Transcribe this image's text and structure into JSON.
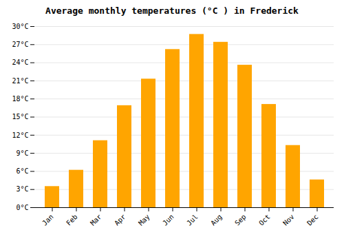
{
  "chart_data": {
    "type": "bar",
    "title": "Average monthly temperatures (°C ) in Frederick",
    "categories": [
      "Jan",
      "Feb",
      "Mar",
      "Apr",
      "May",
      "Jun",
      "Jul",
      "Aug",
      "Sep",
      "Oct",
      "Nov",
      "Dec"
    ],
    "values": [
      3.5,
      6.2,
      11.1,
      16.9,
      21.3,
      26.2,
      28.7,
      27.4,
      23.6,
      17.1,
      10.3,
      4.6
    ],
    "color": "#FFA500",
    "ylim": [
      0,
      30
    ],
    "yticks": [
      {
        "value": 0,
        "label": "0°C"
      },
      {
        "value": 3,
        "label": "3°C"
      },
      {
        "value": 6,
        "label": "6°C"
      },
      {
        "value": 9,
        "label": "9°C"
      },
      {
        "value": 12,
        "label": "12°C"
      },
      {
        "value": 15,
        "label": "15°C"
      },
      {
        "value": 18,
        "label": "18°C"
      },
      {
        "value": 21,
        "label": "21°C"
      },
      {
        "value": 24,
        "label": "24°C"
      },
      {
        "value": 27,
        "label": "27°C"
      },
      {
        "value": 30,
        "label": "30°C"
      }
    ],
    "grid": true
  }
}
